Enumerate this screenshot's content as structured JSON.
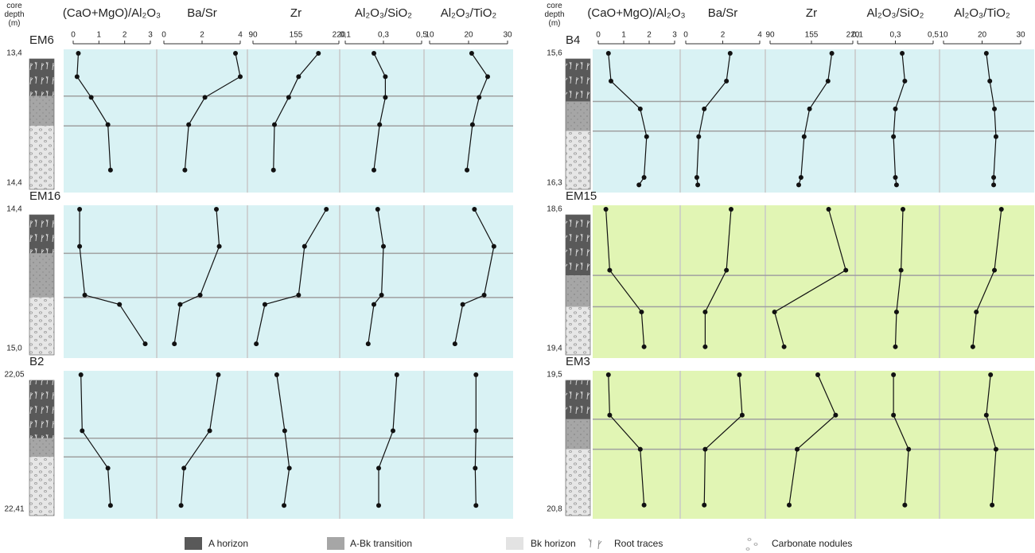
{
  "chart_data": [
    {
      "type": "depth-profile",
      "axis_label": "core depth (m)",
      "variables": [
        {
          "name": "(CaO+MgO)/Al₂O₃",
          "xlim": [
            0,
            3
          ],
          "xticks": [
            0,
            1,
            2,
            3
          ]
        },
        {
          "name": "Ba/Sr",
          "xlim": [
            0,
            4
          ],
          "xticks": [
            0,
            2,
            4
          ]
        },
        {
          "name": "Zr",
          "xlim": [
            90,
            220
          ],
          "xticks": [
            90,
            155,
            220
          ]
        },
        {
          "name": "Al₂O₃/SiO₂",
          "xlim": [
            0.1,
            0.5
          ],
          "xticks": [
            {
              "value": 0.1,
              "label": "0,1"
            },
            {
              "value": 0.3,
              "label": "0,3"
            },
            {
              "value": 0.5,
              "label": "0,5"
            }
          ]
        },
        {
          "name": "Al₂O₃/TiO₂",
          "xlim": [
            10,
            30
          ],
          "xticks": [
            10,
            20,
            30
          ]
        }
      ],
      "cores": [
        {
          "name": "EM6",
          "color": "#d9f2f4",
          "ylim": [
            13.4,
            14.4
          ],
          "yticks": [
            {
              "value": 13.4,
              "label": "13,4"
            },
            {
              "value": 14.4,
              "label": "14,4"
            }
          ],
          "boundaries": [
            13.73,
            13.96
          ],
          "depths": [
            13.4,
            13.58,
            13.74,
            13.95,
            14.3
          ],
          "values": [
            [
              0.2,
              0.15,
              0.7,
              1.35,
              1.45
            ],
            [
              3.75,
              4.0,
              2.15,
              1.3,
              1.1
            ],
            [
              189,
              159,
              144,
              122.5,
              121
            ],
            [
              0.25,
              0.31,
              0.31,
              0.28,
              0.25
            ],
            [
              20.8,
              24.9,
              22.7,
              21,
              19.6
            ]
          ]
        },
        {
          "name": "EM16",
          "color": "#d9f2f4",
          "ylim": [
            14.4,
            15.0
          ],
          "yticks": [
            {
              "value": 14.4,
              "label": "14,4"
            },
            {
              "value": 15.0,
              "label": "15,0"
            }
          ],
          "boundaries": [
            14.59,
            14.78
          ],
          "depths": [
            14.4,
            14.56,
            14.77,
            14.81,
            14.98
          ],
          "values": [
            [
              0.25,
              0.25,
              0.45,
              1.8,
              2.8
            ],
            [
              2.75,
              2.9,
              1.9,
              0.85,
              0.55
            ],
            [
              201,
              168,
              159,
              108,
              95
            ],
            [
              0.27,
              0.3,
              0.29,
              0.25,
              0.22
            ],
            [
              21.5,
              26.5,
              24,
              18.5,
              16.5
            ]
          ]
        },
        {
          "name": "B2",
          "color": "#d9f2f4",
          "ylim": [
            22.05,
            22.41
          ],
          "yticks": [
            {
              "value": 22.05,
              "label": "22,05"
            },
            {
              "value": 22.41,
              "label": "22,41"
            }
          ],
          "boundaries": [
            22.22,
            22.27
          ],
          "depths": [
            22.05,
            22.2,
            22.3,
            22.4
          ],
          "values": [
            [
              0.3,
              0.35,
              1.35,
              1.45
            ],
            [
              2.85,
              2.4,
              1.05,
              0.9
            ],
            [
              126,
              138,
              145,
              137
            ],
            [
              0.37,
              0.35,
              0.275,
              0.275
            ],
            [
              21.9,
              21.9,
              21.7,
              21.9
            ]
          ]
        }
      ]
    },
    {
      "type": "depth-profile",
      "axis_label": "core depth (m)",
      "variables": [
        {
          "name": "(CaO+MgO)/Al₂O₃",
          "xlim": [
            0,
            3
          ],
          "xticks": [
            0,
            1,
            2,
            3
          ]
        },
        {
          "name": "Ba/Sr",
          "xlim": [
            0,
            4
          ],
          "xticks": [
            0,
            2,
            4
          ]
        },
        {
          "name": "Zr",
          "xlim": [
            90,
            220
          ],
          "xticks": [
            90,
            155,
            220
          ]
        },
        {
          "name": "Al₂O₃/SiO₂",
          "xlim": [
            0.1,
            0.5
          ],
          "xticks": [
            {
              "value": 0.1,
              "label": "0,1"
            },
            {
              "value": 0.3,
              "label": "0,3"
            },
            {
              "value": 0.5,
              "label": "0,5"
            }
          ]
        },
        {
          "name": "Al₂O₃/TiO₂",
          "xlim": [
            10,
            30
          ],
          "xticks": [
            10,
            20,
            30
          ]
        }
      ],
      "cores": [
        {
          "name": "B4",
          "color": "#d9f2f4",
          "ylim": [
            15.6,
            16.3
          ],
          "yticks": [
            {
              "value": 15.6,
              "label": "15,6"
            },
            {
              "value": 16.3,
              "label": "16,3"
            }
          ],
          "boundaries": [
            15.86,
            16.02
          ],
          "depths": [
            15.6,
            15.75,
            15.9,
            16.05,
            16.27,
            16.31
          ],
          "values": [
            [
              0.4,
              0.5,
              1.65,
              1.9,
              1.8,
              1.6
            ],
            [
              2.4,
              2.2,
              1.0,
              0.7,
              0.6,
              0.65
            ],
            [
              187,
              181,
              152,
              143.5,
              138.6,
              135
            ],
            [
              0.336,
              0.35,
              0.3,
              0.29,
              0.3,
              0.306
            ],
            [
              21.1,
              22,
              23.2,
              23.6,
              23,
              23
            ]
          ]
        },
        {
          "name": "EM15",
          "color": "#e1f5b4",
          "ylim": [
            18.6,
            19.4
          ],
          "yticks": [
            {
              "value": 18.6,
              "label": "18,6"
            },
            {
              "value": 19.4,
              "label": "19,4"
            }
          ],
          "boundaries": [
            18.98,
            19.16
          ],
          "depths": [
            18.6,
            18.95,
            19.19,
            19.39
          ],
          "values": [
            [
              0.3,
              0.45,
              1.7,
              1.8
            ],
            [
              2.45,
              2.2,
              1.05,
              1.05
            ],
            [
              182,
              209,
              97,
              112
            ],
            [
              0.34,
              0.33,
              0.306,
              0.3
            ],
            [
              25,
              23.2,
              18.5,
              17.6
            ]
          ]
        },
        {
          "name": "EM3",
          "color": "#e1f5b4",
          "ylim": [
            19.5,
            20.8
          ],
          "yticks": [
            {
              "value": 19.5,
              "label": "19,5"
            },
            {
              "value": 20.8,
              "label": "20,8"
            }
          ],
          "boundaries": [
            19.93,
            20.22
          ],
          "depths": [
            19.5,
            19.89,
            20.22,
            20.76
          ],
          "values": [
            [
              0.4,
              0.45,
              1.65,
              1.8
            ],
            [
              2.9,
              3.05,
              1.05,
              1.0
            ],
            [
              165,
              193,
              132.5,
              120
            ],
            [
              0.29,
              0.29,
              0.37,
              0.35
            ],
            [
              22.2,
              21.1,
              23.6,
              22.6
            ]
          ]
        }
      ]
    }
  ],
  "legend": {
    "a_horizon": "A horizon",
    "transition": "A-Bk transition",
    "bk_horizon": "Bk horizon",
    "roots": "Root traces",
    "nodules": "Carbonate nodules"
  }
}
